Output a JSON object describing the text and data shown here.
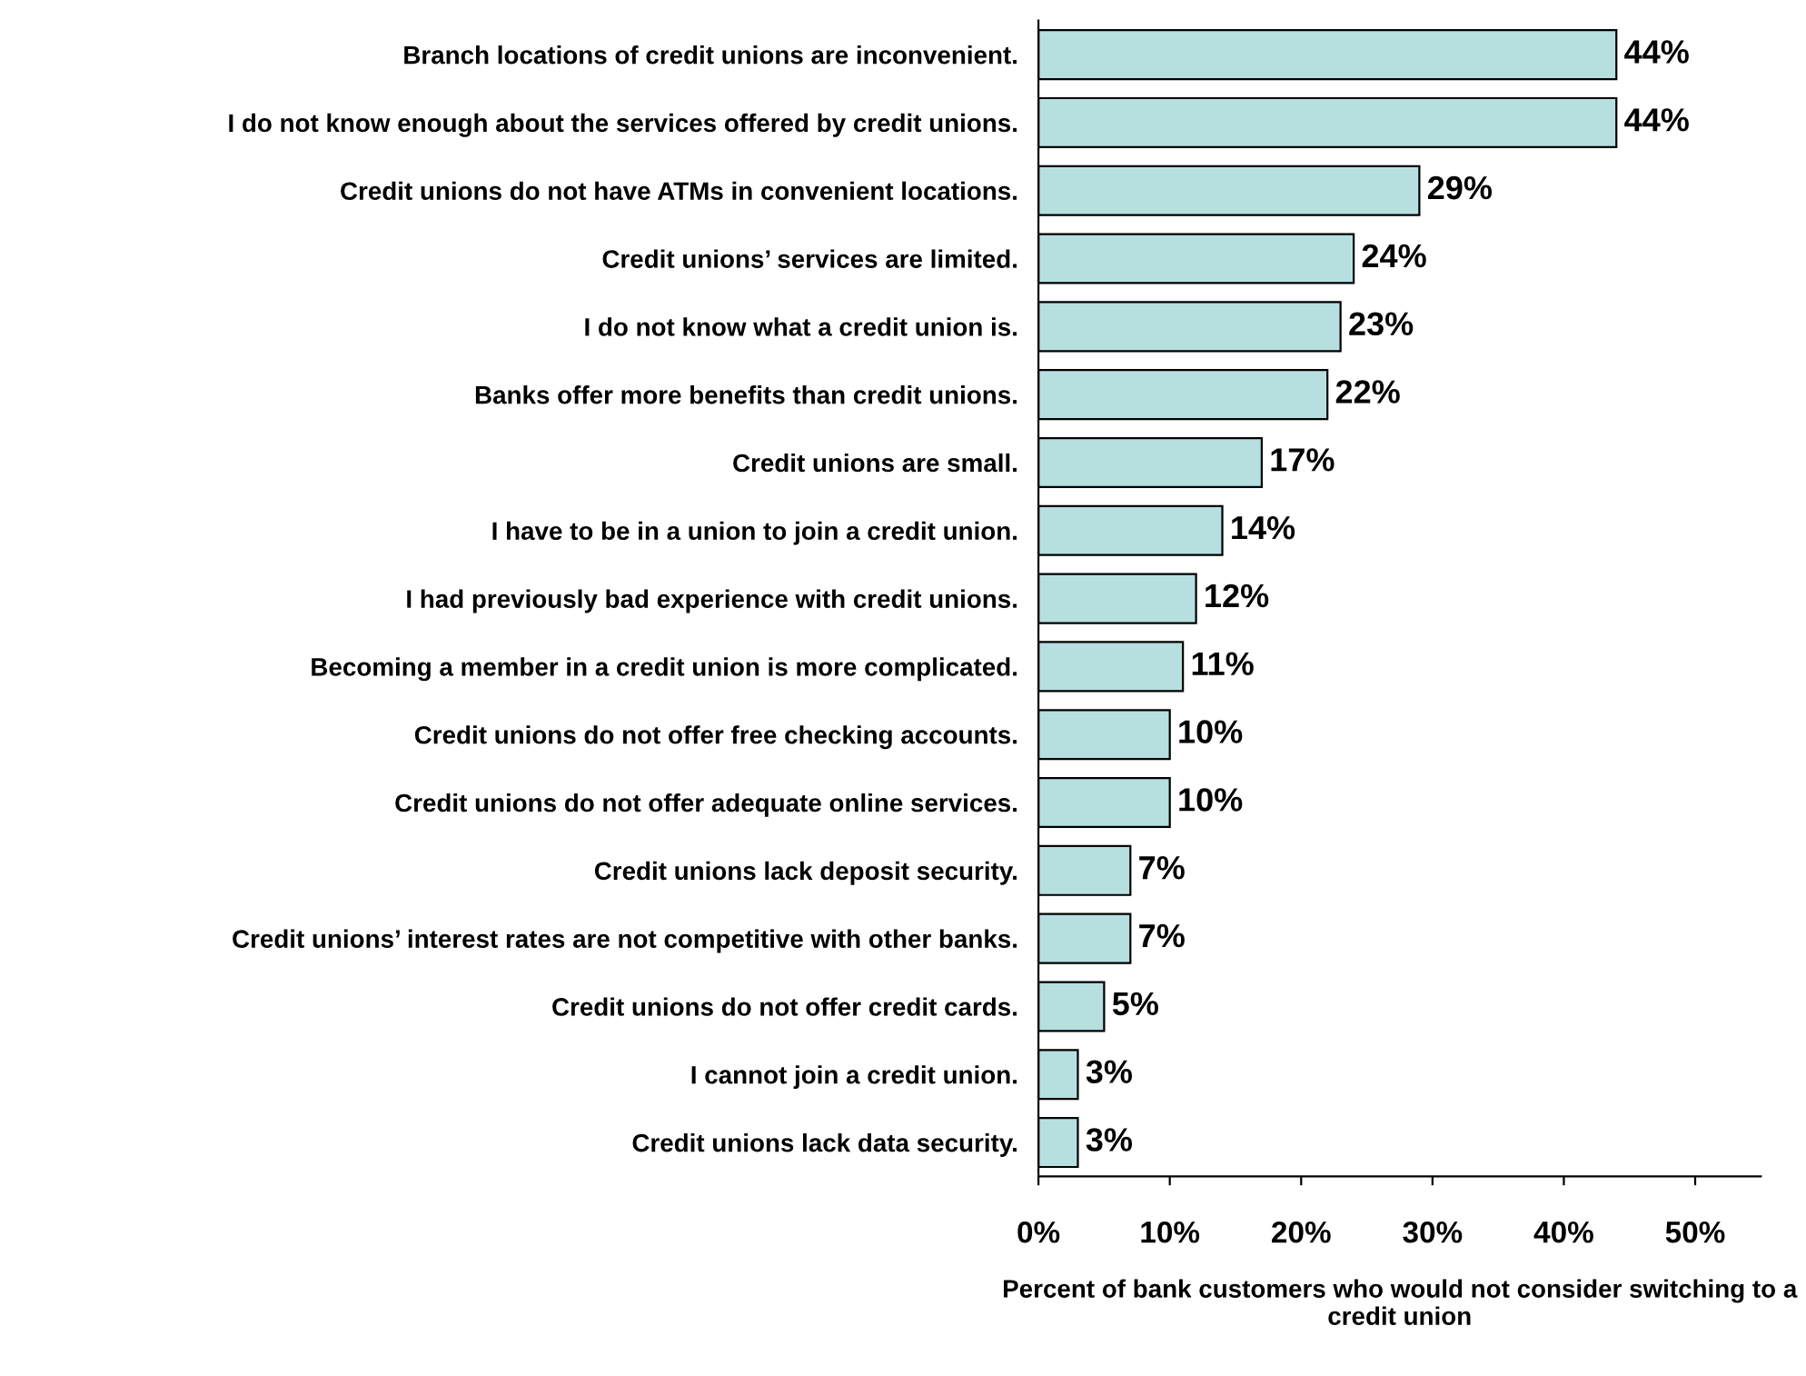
{
  "chart_data": {
    "type": "bar",
    "orientation": "horizontal",
    "categories": [
      "Branch locations of credit unions are inconvenient.",
      "I do not know enough about the services offered by credit unions.",
      "Credit unions do not have ATMs in convenient locations.",
      "Credit unions’ services are limited.",
      "I do not know what a credit union is.",
      "Banks offer more benefits than credit unions.",
      "Credit unions are small.",
      "I have to be in a union to join a credit union.",
      "I had previously bad experience with credit unions.",
      "Becoming a member in a credit union is more complicated.",
      "Credit unions do not offer free checking accounts.",
      "Credit unions do not offer adequate online services.",
      "Credit unions lack deposit security.",
      "Credit unions’ interest rates are not competitive with other banks.",
      "Credit unions do not offer credit cards.",
      "I cannot join a credit union.",
      "Credit unions lack data security."
    ],
    "values": [
      44,
      44,
      29,
      24,
      23,
      22,
      17,
      14,
      12,
      11,
      10,
      10,
      7,
      7,
      5,
      3,
      3
    ],
    "value_labels": [
      "44%",
      "44%",
      "29%",
      "24%",
      "23%",
      "22%",
      "17%",
      "14%",
      "12%",
      "11%",
      "10%",
      "10%",
      "7%",
      "7%",
      "5%",
      "3%",
      "3%"
    ],
    "color": "#b7dfe0",
    "xlim": [
      0,
      55
    ],
    "xticks": [
      {
        "value": 0,
        "label": "0%"
      },
      {
        "value": 10,
        "label": "10%"
      },
      {
        "value": 20,
        "label": "20%"
      },
      {
        "value": 30,
        "label": "30%"
      },
      {
        "value": 40,
        "label": "40%"
      },
      {
        "value": 50,
        "label": "50%"
      }
    ],
    "xlabel": "Percent of bank customers who would not consider switching to a credit union",
    "grid": false
  }
}
